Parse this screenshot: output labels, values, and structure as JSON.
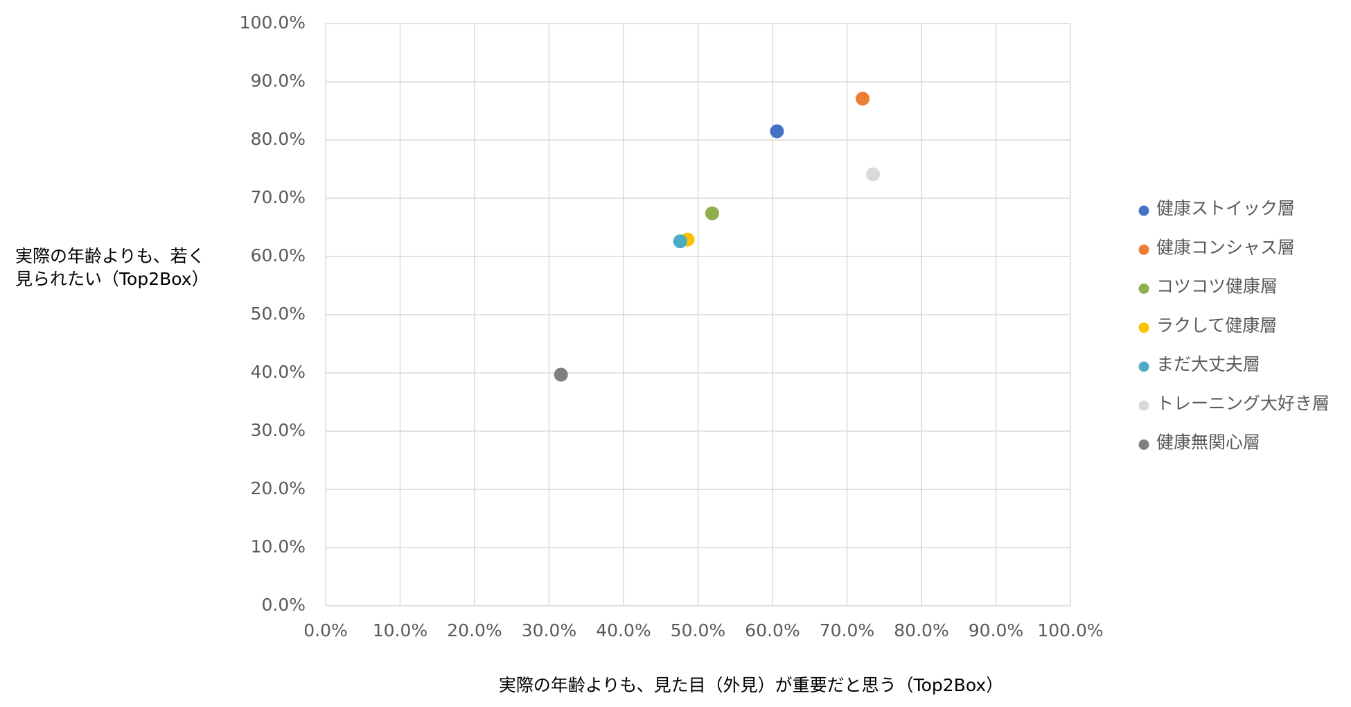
{
  "chart_data": {
    "type": "scatter",
    "xlabel": "実際の年齢よりも、見た目（外見）が重要だと思う（Top2Box）",
    "ylabel": [
      "実際の年齢よりも、若く",
      "見られたい（Top2Box）"
    ],
    "xlim": [
      0,
      100
    ],
    "ylim": [
      0,
      100
    ],
    "xticks": [
      {
        "value": 0,
        "label": "0.0%"
      },
      {
        "value": 10,
        "label": "10.0%"
      },
      {
        "value": 20,
        "label": "20.0%"
      },
      {
        "value": 30,
        "label": "30.0%"
      },
      {
        "value": 40,
        "label": "40.0%"
      },
      {
        "value": 50,
        "label": "50.0%"
      },
      {
        "value": 60,
        "label": "60.0%"
      },
      {
        "value": 70,
        "label": "70.0%"
      },
      {
        "value": 80,
        "label": "80.0%"
      },
      {
        "value": 90,
        "label": "90.0%"
      },
      {
        "value": 100,
        "label": "100.0%"
      }
    ],
    "yticks": [
      {
        "value": 0,
        "label": "0.0%"
      },
      {
        "value": 10,
        "label": "10.0%"
      },
      {
        "value": 20,
        "label": "20.0%"
      },
      {
        "value": 30,
        "label": "30.0%"
      },
      {
        "value": 40,
        "label": "40.0%"
      },
      {
        "value": 50,
        "label": "50.0%"
      },
      {
        "value": 60,
        "label": "60.0%"
      },
      {
        "value": 70,
        "label": "70.0%"
      },
      {
        "value": 80,
        "label": "80.0%"
      },
      {
        "value": 90,
        "label": "90.0%"
      },
      {
        "value": 100,
        "label": "100.0%"
      }
    ],
    "grid": true,
    "legend": "right",
    "series": [
      {
        "name": "健康ストイック層",
        "color": "#4472c4",
        "x": [
          60.6
        ],
        "values": [
          81.5
        ]
      },
      {
        "name": "健康コンシャス層",
        "color": "#ed7d31",
        "x": [
          72.1
        ],
        "values": [
          87.1
        ]
      },
      {
        "name": "コツコツ健康層",
        "color": "#8faf4c",
        "x": [
          51.9
        ],
        "values": [
          67.4
        ]
      },
      {
        "name": "ラクして健康層",
        "color": "#ffc000",
        "x": [
          48.6
        ],
        "values": [
          62.9
        ]
      },
      {
        "name": "まだ大丈夫層",
        "color": "#4bacc6",
        "x": [
          47.6
        ],
        "values": [
          62.6
        ]
      },
      {
        "name": "トレーニング大好き層",
        "color": "#d9d9d9",
        "x": [
          73.5
        ],
        "values": [
          74.1
        ]
      },
      {
        "name": "健康無関心層",
        "color": "#7f7f7f",
        "x": [
          31.6
        ],
        "values": [
          39.7
        ]
      }
    ]
  }
}
